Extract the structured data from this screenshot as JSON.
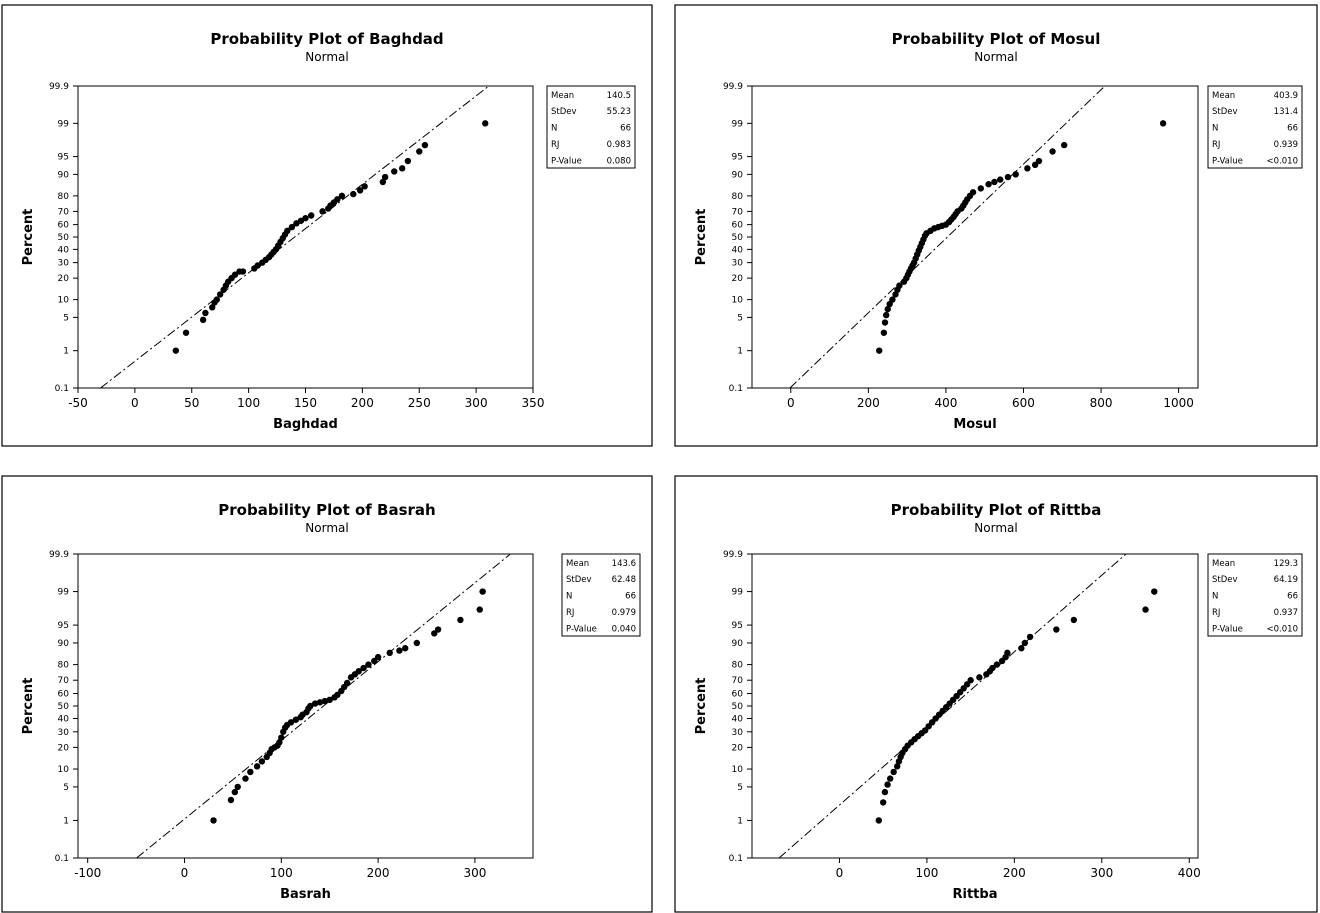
{
  "chart_data": [
    {
      "type": "scatter",
      "title": "Probability Plot of Baghdad",
      "subtitle": "Normal",
      "xlabel": "Baghdad",
      "ylabel": "Percent",
      "xlim": [
        -50,
        350
      ],
      "xticks": [
        -50,
        0,
        50,
        100,
        150,
        200,
        250,
        300,
        350
      ],
      "yticks": [
        0.1,
        1,
        5,
        10,
        20,
        30,
        40,
        50,
        60,
        70,
        80,
        90,
        95,
        99,
        99.9
      ],
      "ytick_labels": [
        "0.1",
        "1",
        "5",
        "10",
        "20",
        "30",
        "40",
        "50",
        "60",
        "70",
        "80",
        "90",
        "95",
        "99",
        "99.9"
      ],
      "fit_line": {
        "mean": 140.5,
        "stdev": 55.23
      },
      "stats": [
        {
          "label": "Mean",
          "value": "140.5"
        },
        {
          "label": "StDev",
          "value": "55.23"
        },
        {
          "label": "N",
          "value": "66"
        },
        {
          "label": "RJ",
          "value": "0.983"
        },
        {
          "label": "P-Value",
          "value": "0.080"
        }
      ],
      "points": [
        [
          36,
          1
        ],
        [
          45,
          2.5
        ],
        [
          60,
          4.5
        ],
        [
          62,
          6
        ],
        [
          68,
          7.5
        ],
        [
          70,
          9
        ],
        [
          72,
          10
        ],
        [
          75,
          12
        ],
        [
          78,
          14
        ],
        [
          80,
          16
        ],
        [
          82,
          18
        ],
        [
          85,
          20
        ],
        [
          88,
          22
        ],
        [
          92,
          24
        ],
        [
          95,
          24
        ],
        [
          105,
          26
        ],
        [
          108,
          28
        ],
        [
          112,
          30
        ],
        [
          115,
          32
        ],
        [
          118,
          34
        ],
        [
          120,
          36
        ],
        [
          122,
          38
        ],
        [
          124,
          40
        ],
        [
          126,
          43
        ],
        [
          128,
          46
        ],
        [
          130,
          49
        ],
        [
          132,
          52
        ],
        [
          134,
          55
        ],
        [
          138,
          58
        ],
        [
          142,
          61
        ],
        [
          146,
          63
        ],
        [
          150,
          65
        ],
        [
          155,
          67
        ],
        [
          165,
          70
        ],
        [
          170,
          72
        ],
        [
          172,
          74
        ],
        [
          175,
          76
        ],
        [
          178,
          78
        ],
        [
          182,
          80
        ],
        [
          192,
          81
        ],
        [
          198,
          83
        ],
        [
          202,
          85
        ],
        [
          218,
          87
        ],
        [
          220,
          89
        ],
        [
          228,
          91
        ],
        [
          235,
          92
        ],
        [
          240,
          94
        ],
        [
          250,
          96
        ],
        [
          255,
          97
        ],
        [
          308,
          99
        ]
      ]
    },
    {
      "type": "scatter",
      "title": "Probability Plot of Mosul",
      "subtitle": "Normal",
      "xlabel": "Mosul",
      "ylabel": "Percent",
      "xlim": [
        -100,
        1050
      ],
      "xticks": [
        0,
        200,
        400,
        600,
        800,
        1000
      ],
      "yticks": [
        0.1,
        1,
        5,
        10,
        20,
        30,
        40,
        50,
        60,
        70,
        80,
        90,
        95,
        99,
        99.9
      ],
      "ytick_labels": [
        "0.1",
        "1",
        "5",
        "10",
        "20",
        "30",
        "40",
        "50",
        "60",
        "70",
        "80",
        "90",
        "95",
        "99",
        "99.9"
      ],
      "fit_line": {
        "mean": 403.9,
        "stdev": 131.4
      },
      "stats": [
        {
          "label": "Mean",
          "value": "403.9"
        },
        {
          "label": "StDev",
          "value": "131.4"
        },
        {
          "label": "N",
          "value": "66"
        },
        {
          "label": "RJ",
          "value": "0.939"
        },
        {
          "label": "P-Value",
          "value": "<0.010"
        }
      ],
      "points": [
        [
          228,
          1
        ],
        [
          240,
          2.5
        ],
        [
          243,
          4
        ],
        [
          246,
          5.5
        ],
        [
          250,
          7
        ],
        [
          255,
          8.5
        ],
        [
          262,
          10
        ],
        [
          270,
          12
        ],
        [
          275,
          14
        ],
        [
          280,
          16
        ],
        [
          292,
          18
        ],
        [
          298,
          20
        ],
        [
          302,
          22
        ],
        [
          306,
          24
        ],
        [
          310,
          26
        ],
        [
          314,
          28
        ],
        [
          318,
          30
        ],
        [
          322,
          33
        ],
        [
          326,
          36
        ],
        [
          330,
          39
        ],
        [
          334,
          42
        ],
        [
          338,
          45
        ],
        [
          342,
          48
        ],
        [
          346,
          51
        ],
        [
          350,
          53
        ],
        [
          360,
          55
        ],
        [
          370,
          57
        ],
        [
          380,
          58
        ],
        [
          390,
          59
        ],
        [
          400,
          60
        ],
        [
          408,
          62
        ],
        [
          414,
          64
        ],
        [
          420,
          66
        ],
        [
          425,
          68
        ],
        [
          430,
          70
        ],
        [
          440,
          72
        ],
        [
          445,
          74
        ],
        [
          450,
          76
        ],
        [
          455,
          78
        ],
        [
          462,
          80
        ],
        [
          470,
          82
        ],
        [
          490,
          84
        ],
        [
          510,
          86
        ],
        [
          525,
          87
        ],
        [
          540,
          88
        ],
        [
          560,
          89
        ],
        [
          580,
          90
        ],
        [
          610,
          92
        ],
        [
          630,
          93
        ],
        [
          640,
          94
        ],
        [
          675,
          96
        ],
        [
          705,
          97
        ],
        [
          960,
          99
        ]
      ]
    },
    {
      "type": "scatter",
      "title": "Probability Plot of Basrah",
      "subtitle": "Normal",
      "xlabel": "Basrah",
      "ylabel": "Percent",
      "xlim": [
        -110,
        360
      ],
      "xticks": [
        -100,
        0,
        100,
        200,
        300
      ],
      "yticks": [
        0.1,
        1,
        5,
        10,
        20,
        30,
        40,
        50,
        60,
        70,
        80,
        90,
        95,
        99,
        99.9
      ],
      "ytick_labels": [
        "0.1",
        "1",
        "5",
        "10",
        "20",
        "30",
        "40",
        "50",
        "60",
        "70",
        "80",
        "90",
        "95",
        "99",
        "99.9"
      ],
      "fit_line": {
        "mean": 143.6,
        "stdev": 62.48
      },
      "stats": [
        {
          "label": "Mean",
          "value": "143.6"
        },
        {
          "label": "StDev",
          "value": "62.48"
        },
        {
          "label": "N",
          "value": "66"
        },
        {
          "label": "RJ",
          "value": "0.979"
        },
        {
          "label": "P-Value",
          "value": "0.040"
        }
      ],
      "points": [
        [
          30,
          1
        ],
        [
          48,
          2.8
        ],
        [
          52,
          4
        ],
        [
          55,
          5
        ],
        [
          63,
          7
        ],
        [
          68,
          9
        ],
        [
          75,
          11
        ],
        [
          80,
          13
        ],
        [
          85,
          15
        ],
        [
          88,
          17
        ],
        [
          90,
          19
        ],
        [
          93,
          20
        ],
        [
          96,
          21
        ],
        [
          98,
          23
        ],
        [
          100,
          26
        ],
        [
          102,
          30
        ],
        [
          104,
          33
        ],
        [
          106,
          35
        ],
        [
          110,
          37
        ],
        [
          115,
          39
        ],
        [
          120,
          41
        ],
        [
          122,
          43
        ],
        [
          126,
          45
        ],
        [
          128,
          48
        ],
        [
          130,
          50
        ],
        [
          135,
          52
        ],
        [
          140,
          53
        ],
        [
          145,
          54
        ],
        [
          150,
          55
        ],
        [
          155,
          57
        ],
        [
          158,
          59
        ],
        [
          162,
          62
        ],
        [
          165,
          65
        ],
        [
          168,
          68
        ],
        [
          172,
          72
        ],
        [
          176,
          74
        ],
        [
          180,
          76
        ],
        [
          185,
          78
        ],
        [
          190,
          80
        ],
        [
          196,
          82
        ],
        [
          200,
          84
        ],
        [
          212,
          86
        ],
        [
          222,
          87
        ],
        [
          228,
          88
        ],
        [
          240,
          90
        ],
        [
          258,
          93
        ],
        [
          262,
          94
        ],
        [
          285,
          96
        ],
        [
          305,
          97.5
        ],
        [
          308,
          99
        ]
      ]
    },
    {
      "type": "scatter",
      "title": "Probability Plot of Rittba",
      "subtitle": "Normal",
      "xlabel": "Rittba",
      "ylabel": "Percent",
      "xlim": [
        -100,
        410
      ],
      "xticks": [
        0,
        100,
        200,
        300,
        400
      ],
      "yticks": [
        0.1,
        1,
        5,
        10,
        20,
        30,
        40,
        50,
        60,
        70,
        80,
        90,
        95,
        99,
        99.9
      ],
      "ytick_labels": [
        "0.1",
        "1",
        "5",
        "10",
        "20",
        "30",
        "40",
        "50",
        "60",
        "70",
        "80",
        "90",
        "95",
        "99",
        "99.9"
      ],
      "fit_line": {
        "mean": 129.3,
        "stdev": 64.19
      },
      "stats": [
        {
          "label": "Mean",
          "value": "129.3"
        },
        {
          "label": "StDev",
          "value": "64.19"
        },
        {
          "label": "N",
          "value": "66"
        },
        {
          "label": "RJ",
          "value": "0.937"
        },
        {
          "label": "P-Value",
          "value": "<0.010"
        }
      ],
      "points": [
        [
          45,
          1
        ],
        [
          50,
          2.5
        ],
        [
          52,
          4
        ],
        [
          55,
          5.5
        ],
        [
          58,
          7
        ],
        [
          62,
          9
        ],
        [
          66,
          11
        ],
        [
          68,
          13
        ],
        [
          70,
          15
        ],
        [
          72,
          17
        ],
        [
          75,
          19
        ],
        [
          78,
          21
        ],
        [
          82,
          23
        ],
        [
          86,
          25
        ],
        [
          90,
          27
        ],
        [
          94,
          29
        ],
        [
          98,
          31
        ],
        [
          102,
          34
        ],
        [
          106,
          37
        ],
        [
          110,
          40
        ],
        [
          114,
          43
        ],
        [
          118,
          46
        ],
        [
          122,
          49
        ],
        [
          126,
          52
        ],
        [
          130,
          55
        ],
        [
          134,
          58
        ],
        [
          138,
          61
        ],
        [
          142,
          64
        ],
        [
          146,
          67
        ],
        [
          150,
          70
        ],
        [
          160,
          72
        ],
        [
          168,
          74
        ],
        [
          172,
          76
        ],
        [
          175,
          78
        ],
        [
          180,
          80
        ],
        [
          186,
          82
        ],
        [
          190,
          84
        ],
        [
          192,
          86
        ],
        [
          208,
          88
        ],
        [
          212,
          90
        ],
        [
          218,
          92
        ],
        [
          248,
          94
        ],
        [
          268,
          96
        ],
        [
          350,
          97.5
        ],
        [
          360,
          99
        ]
      ]
    }
  ]
}
